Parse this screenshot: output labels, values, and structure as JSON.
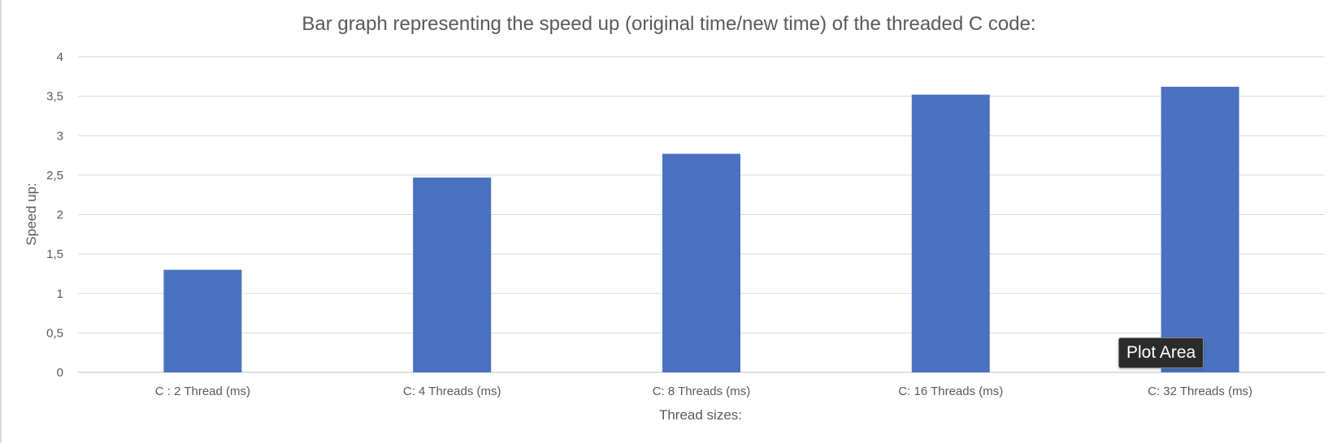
{
  "chart_data": {
    "type": "bar",
    "title": "Bar graph representing the speed up (original time/new time) of the threaded C code:",
    "xlabel": "Thread sizes:",
    "ylabel": "Speed up:",
    "categories": [
      "C : 2 Thread (ms)",
      "C: 4 Threads (ms)",
      "C: 8 Threads (ms)",
      "C: 16 Threads (ms)",
      "C: 32 Threads (ms)"
    ],
    "values": [
      1.3,
      2.47,
      2.77,
      3.52,
      3.62
    ],
    "ylim": [
      0,
      4
    ],
    "yticks": [
      0,
      0.5,
      1,
      1.5,
      2,
      2.5,
      3,
      3.5,
      4
    ],
    "ytick_labels": [
      "0",
      "0,5",
      "1",
      "1,5",
      "2",
      "2,5",
      "3",
      "3,5",
      "4"
    ],
    "grid": true,
    "legend": "none",
    "colors": {
      "bar": "#4a72c0",
      "grid": "#d9d9d9",
      "axis": "#bfbfbf",
      "text": "#595959"
    }
  },
  "tooltip": {
    "label": "Plot Area"
  }
}
